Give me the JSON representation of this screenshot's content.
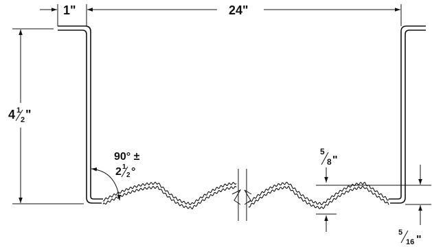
{
  "dimensions": {
    "flange_width": {
      "whole": "1",
      "unit": "\""
    },
    "span": {
      "whole": "24",
      "unit": "\""
    },
    "height": {
      "whole": "4",
      "num": "1",
      "den": "2",
      "unit": "\""
    },
    "angle": {
      "line1": "90° ±",
      "whole": "2",
      "num": "1",
      "den": "2",
      "unit": "°"
    },
    "corrugation_depth": {
      "num": "5",
      "den": "8",
      "unit": "\""
    },
    "bottom_gap": {
      "num": "5",
      "den": "16",
      "unit": "\""
    }
  }
}
